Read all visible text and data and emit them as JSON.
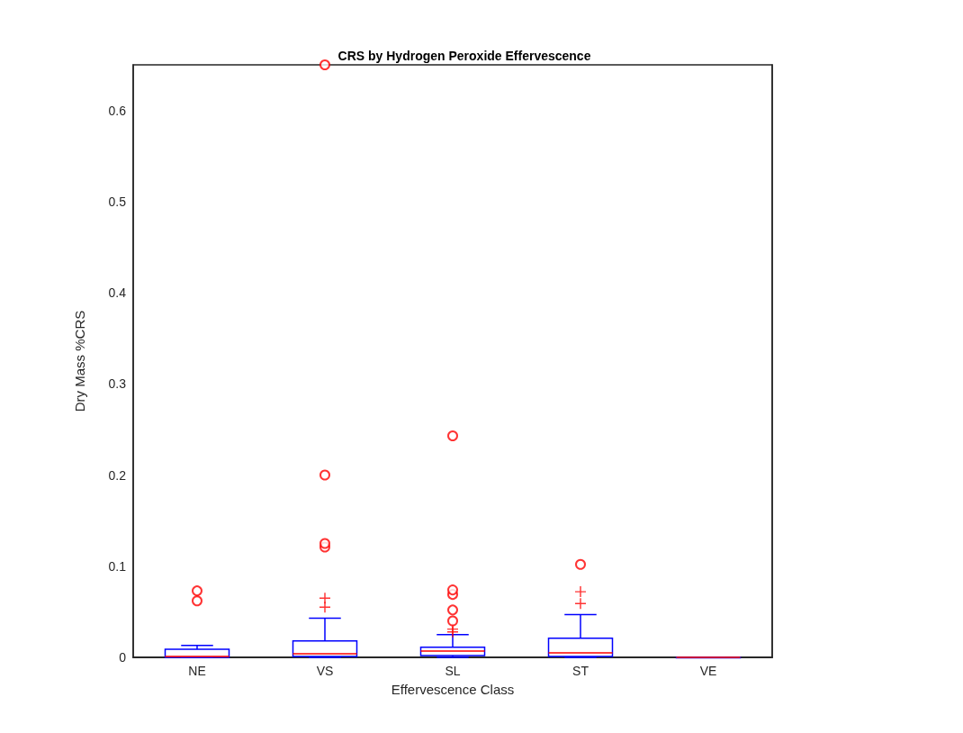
{
  "chart_data": {
    "type": "box",
    "title": "CRS by Hydrogen Peroxide Effervescence",
    "xlabel": "Effervescence Class",
    "ylabel": "Dry Mass %CRS",
    "categories": [
      "NE",
      "VS",
      "SL",
      "ST",
      "VE"
    ],
    "ylim": [
      0,
      0.65
    ],
    "yticks": [
      0,
      0.1,
      0.2,
      0.3,
      0.4,
      0.5,
      0.6
    ],
    "grid": false,
    "series": [
      {
        "color": "#0000ff",
        "boxes": [
          {
            "low": 0,
            "q1": 0,
            "median": 0.001,
            "q3": 0.009,
            "high": 0.013
          },
          {
            "low": 0,
            "q1": 0.001,
            "median": 0.004,
            "q3": 0.018,
            "high": 0.043,
            "outliers": [
              0.055,
              0.065
            ]
          },
          {
            "low": 0,
            "q1": 0.002,
            "median": 0.007,
            "q3": 0.011,
            "high": 0.025,
            "outliers": [
              0.028,
              0.031
            ]
          },
          {
            "low": 0,
            "q1": 0.001,
            "median": 0.005,
            "q3": 0.021,
            "high": 0.047,
            "outliers": [
              0.059,
              0.072
            ]
          },
          {
            "low": 0,
            "q1": 0,
            "median": 0,
            "q3": 0,
            "high": 0
          }
        ]
      },
      {
        "type": "scatter",
        "color": "#ff0000",
        "marker": "circle",
        "x": [
          "NE",
          "NE",
          "VS",
          "VS",
          "VS",
          "VS",
          "SL",
          "SL",
          "SL",
          "SL",
          "SL",
          "ST"
        ],
        "values": [
          0.062,
          0.073,
          0.121,
          0.125,
          0.2,
          0.65,
          0.04,
          0.052,
          0.069,
          0.074,
          0.243,
          0.102
        ]
      }
    ]
  }
}
